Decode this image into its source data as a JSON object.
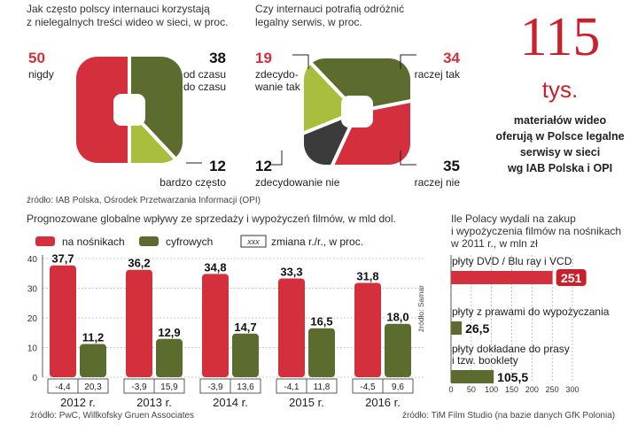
{
  "colors": {
    "red": "#d32f3c",
    "olive": "#5c6b2e",
    "lime": "#a9be3c",
    "dark": "#3b3b3b",
    "accent": "#c8202c"
  },
  "donut1": {
    "title": [
      "Jak często polscy internauci korzystają",
      "z nielegalnych treści wideo w sieci, w proc."
    ],
    "chart_type": "pie",
    "slices": [
      {
        "value": "50",
        "label": [
          "nigdy"
        ],
        "color": "#d32f3c"
      },
      {
        "value": "38",
        "label": [
          "od czasu",
          "do czasu"
        ],
        "color": "#5c6b2e"
      },
      {
        "value": "12",
        "label": [
          "bardzo często"
        ],
        "color": "#a9be3c"
      }
    ]
  },
  "donut2": {
    "title": [
      "Czy internauci potrafią odróżnić",
      "legalny serwis, w proc."
    ],
    "chart_type": "pie",
    "slices": [
      {
        "value": "19",
        "label": [
          "zdecydo-",
          "wanie tak"
        ],
        "color": "#a9be3c"
      },
      {
        "value": "34",
        "label": [
          "raczej tak"
        ],
        "color": "#5c6b2e"
      },
      {
        "value": "35",
        "label": [
          "raczej nie"
        ],
        "color": "#d32f3c"
      },
      {
        "value": "12",
        "label": [
          "zdecydowanie nie"
        ],
        "color": "#3b3b3b"
      }
    ]
  },
  "source_top": "źródło: IAB Polska, Ośrodek Przetwarzania Informacji (OPI)",
  "highlight": {
    "number": "115",
    "unit": "tys.",
    "lines": [
      "materiałów wideo",
      "oferują w Polsce legalne",
      "serwisy w sieci",
      "wg IAB Polska i OPI"
    ]
  },
  "chart_data": [
    {
      "type": "bar",
      "title": "Prognozowane globalne wpływy ze sprzedaży i wypożyczeń filmów, w mld dol.",
      "categories": [
        "2012 r.",
        "2013 r.",
        "2014 r.",
        "2015 r.",
        "2016 r."
      ],
      "series": [
        {
          "name": "na nośnikach",
          "values": [
            37.7,
            36.2,
            34.8,
            33.3,
            31.8
          ],
          "labels": [
            "37,7",
            "36,2",
            "34,8",
            "33,3",
            "31,8"
          ],
          "color": "#d32f3c"
        },
        {
          "name": "cyfrowych",
          "values": [
            11.2,
            12.9,
            14.7,
            16.5,
            18.0
          ],
          "labels": [
            "11,2",
            "12,9",
            "14,7",
            "16,5",
            "18,0"
          ],
          "color": "#5c6b2e"
        }
      ],
      "changes_label": "zmiana r./r., w proc.",
      "changes_key": "xxx",
      "changes": [
        [
          "-4,4",
          "20,3"
        ],
        [
          "-3,9",
          "15,9"
        ],
        [
          "-3,9",
          "13,6"
        ],
        [
          "-4,1",
          "11,8"
        ],
        [
          "-4,5",
          "9,6"
        ]
      ],
      "ylim": [
        0,
        40
      ],
      "yticks": [
        0,
        10,
        20,
        30,
        40
      ],
      "grid": true,
      "credit": "źródło: Samar",
      "source": "źródło: PwC, Willkofsky Gruen Associates"
    },
    {
      "type": "bar",
      "orientation": "horizontal",
      "title": [
        "Ile Polacy wydali na zakup",
        "i wypożyczenia filmów na nośnikach",
        "w 2011 r., w mln zł"
      ],
      "categories": [
        [
          "płyty DVD / Blu ray i VCD"
        ],
        [
          "płyty z prawami do wypożyczania"
        ],
        [
          "płyty dokładane do prasy",
          "i tzw. booklety"
        ]
      ],
      "values": [
        251,
        26.5,
        105.5
      ],
      "labels": [
        "251",
        "26,5",
        "105,5"
      ],
      "xlim": [
        0,
        300
      ],
      "xticks": [
        0,
        50,
        100,
        150,
        200,
        250,
        300
      ],
      "source": "źródło: TiM Film Studio (na bazie danych GfK Polonia)"
    }
  ]
}
